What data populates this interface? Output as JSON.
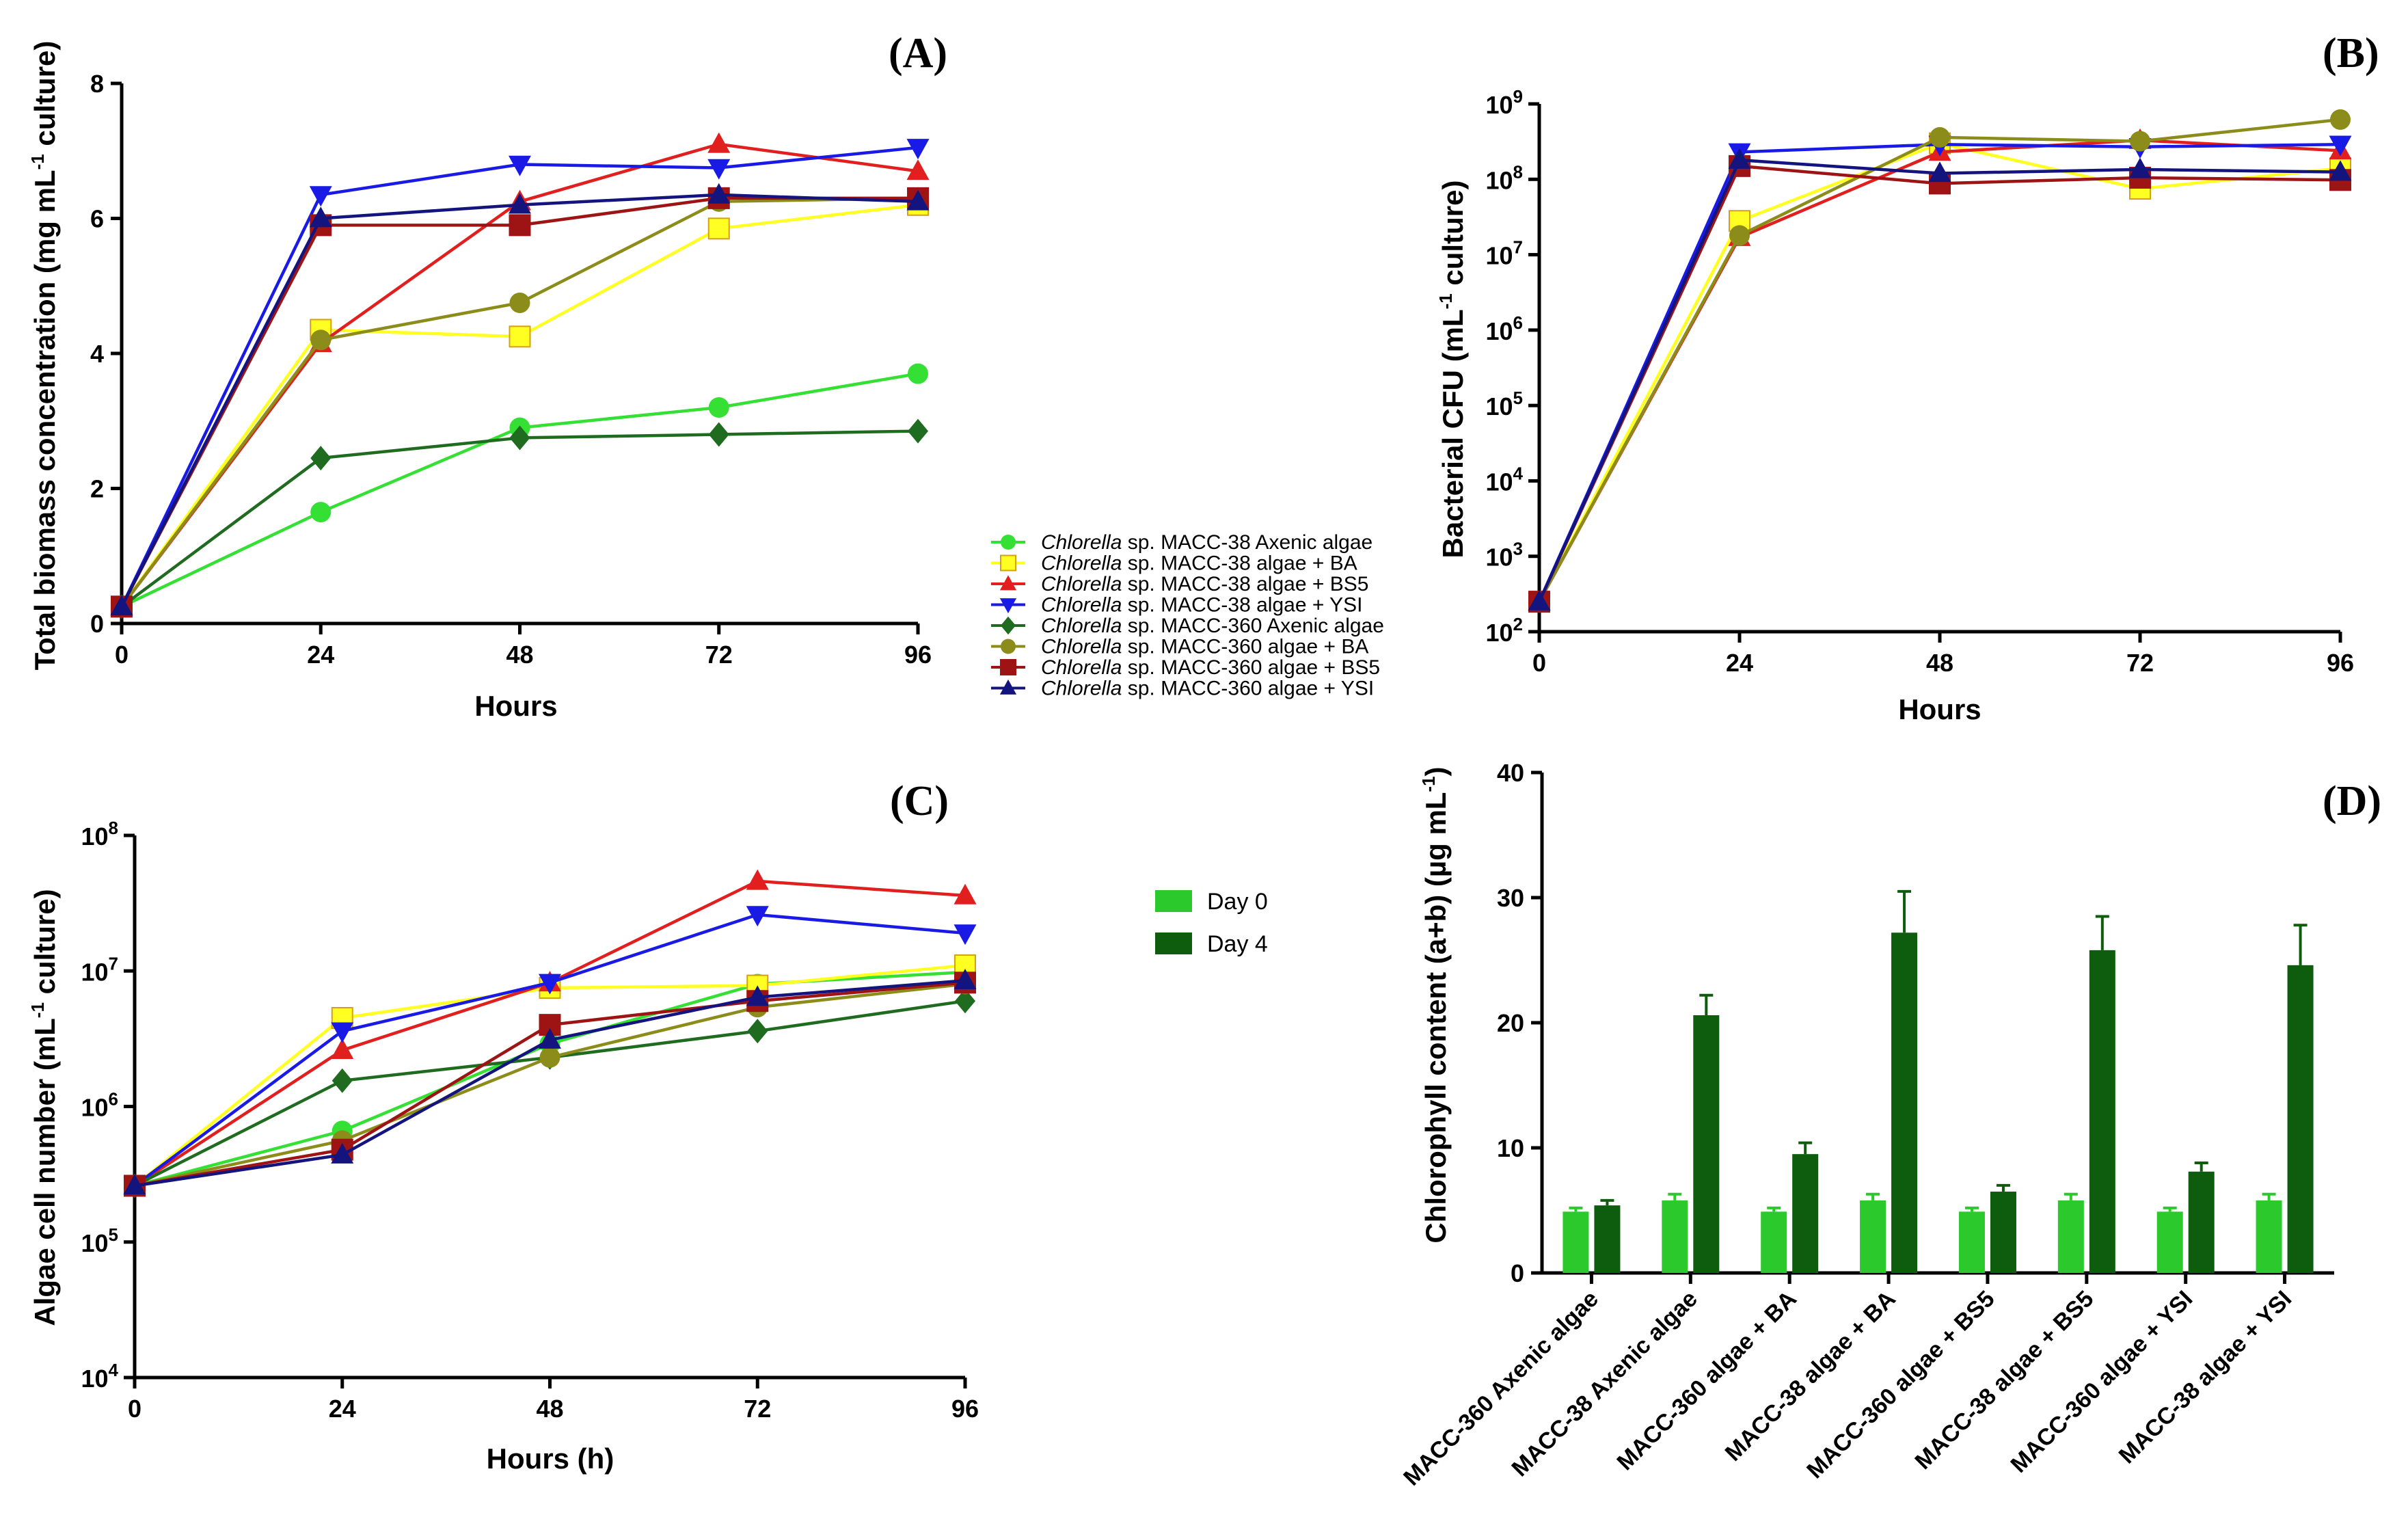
{
  "legend_groups": {
    "italic_name": "Chlorella",
    "lines": [
      {
        "text": " sp. MACC-38 Axenic algae",
        "color": "#33E033",
        "marker": "circle"
      },
      {
        "text": " sp. MACC-38 algae + BA",
        "color": "#FFFF22",
        "marker": "square"
      },
      {
        "text": " sp. MACC-38 algae + BS5",
        "color": "#E21F1F",
        "marker": "triangle-up"
      },
      {
        "text": " sp. MACC-38 algae + YSI",
        "color": "#1A1AE6",
        "marker": "triangle-down"
      },
      {
        "text": " sp. MACC-360 Axenic algae",
        "color": "#1F6B1F",
        "marker": "diamond"
      },
      {
        "text": " sp. MACC-360 algae + BA",
        "color": "#8C8C1A",
        "marker": "circle"
      },
      {
        "text": " sp. MACC-360 algae + BS5",
        "color": "#9E1414",
        "marker": "square"
      },
      {
        "text": " sp. MACC-360 algae + YSI",
        "color": "#14147E",
        "marker": "triangle-up"
      }
    ]
  },
  "bar_legend": [
    {
      "label": "Day 0",
      "color": "#2BC92B"
    },
    {
      "label": "Day 4",
      "color": "#0E5C0E"
    }
  ],
  "chart_data": [
    {
      "id": "A",
      "panel_label": "(A)",
      "type": "line",
      "xlabel": "Hours",
      "ylabel_parts": [
        "Total biomass concentration (mg mL",
        "-1",
        " culture)"
      ],
      "x": [
        0,
        24,
        48,
        72,
        96
      ],
      "xticks": [
        "0",
        "24",
        "48",
        "72",
        "96"
      ],
      "yticks": [
        "0",
        "2",
        "4",
        "6",
        "8"
      ],
      "xlim": [
        0,
        96
      ],
      "ylim": [
        0,
        8
      ],
      "yscale": "linear",
      "series": [
        {
          "name": "Chlorella sp. MACC-38 Axenic algae",
          "values": [
            0.25,
            1.65,
            2.9,
            3.2,
            3.7
          ]
        },
        {
          "name": "Chlorella sp. MACC-38 algae + BA",
          "values": [
            0.25,
            4.35,
            4.25,
            5.85,
            6.2
          ]
        },
        {
          "name": "Chlorella sp. MACC-38 algae + BS5",
          "values": [
            0.25,
            4.15,
            6.25,
            7.1,
            6.7
          ]
        },
        {
          "name": "Chlorella sp. MACC-38 algae + YSI",
          "values": [
            0.25,
            6.35,
            6.8,
            6.75,
            7.05
          ]
        },
        {
          "name": "Chlorella sp. MACC-360 Axenic algae",
          "values": [
            0.25,
            2.45,
            2.75,
            2.8,
            2.85
          ]
        },
        {
          "name": "Chlorella sp. MACC-360 algae + BA",
          "values": [
            0.25,
            4.2,
            4.75,
            6.25,
            6.3
          ]
        },
        {
          "name": "Chlorella sp. MACC-360 algae + BS5",
          "values": [
            0.25,
            5.9,
            5.9,
            6.3,
            6.3
          ]
        },
        {
          "name": "Chlorella sp. MACC-360 algae + YSI",
          "values": [
            0.25,
            6.0,
            6.2,
            6.35,
            6.25
          ]
        }
      ]
    },
    {
      "id": "B",
      "panel_label": "(B)",
      "type": "line",
      "xlabel": "Hours",
      "ylabel_parts": [
        "Bacterial CFU (mL",
        "-1",
        " culture)"
      ],
      "x": [
        0,
        24,
        48,
        72,
        96
      ],
      "xticks": [
        "0",
        "24",
        "48",
        "72",
        "96"
      ],
      "ytick_exponents": [
        "2",
        "3",
        "4",
        "5",
        "6",
        "7",
        "8",
        "9"
      ],
      "xlim": [
        0,
        96
      ],
      "ylim": [
        100,
        1000000000
      ],
      "yscale": "log",
      "series": [
        {
          "name": "Chlorella sp. MACC-38 algae + BA",
          "values": [
            250,
            28000000,
            300000000,
            75000000,
            140000000
          ]
        },
        {
          "name": "Chlorella sp. MACC-38 algae + BS5",
          "values": [
            250,
            17000000,
            230000000,
            330000000,
            240000000
          ]
        },
        {
          "name": "Chlorella sp. MACC-38 algae + YSI",
          "values": [
            250,
            230000000,
            290000000,
            270000000,
            290000000
          ]
        },
        {
          "name": "Chlorella sp. MACC-360 algae + BA",
          "values": [
            250,
            18000000,
            360000000,
            320000000,
            620000000
          ]
        },
        {
          "name": "Chlorella sp. MACC-360 algae + BS5",
          "values": [
            250,
            150000000,
            88000000,
            105000000,
            98000000
          ]
        },
        {
          "name": "Chlorella sp. MACC-360 algae + YSI",
          "values": [
            250,
            180000000,
            120000000,
            135000000,
            125000000
          ]
        }
      ]
    },
    {
      "id": "C",
      "panel_label": "(C)",
      "type": "line",
      "xlabel": "Hours (h)",
      "ylabel_parts": [
        "Algae cell number (mL",
        "-1",
        " culture)"
      ],
      "x": [
        0,
        24,
        48,
        72,
        96
      ],
      "xticks": [
        "0",
        "24",
        "48",
        "72",
        "96"
      ],
      "ytick_exponents": [
        "4",
        "5",
        "6",
        "7",
        "8"
      ],
      "xlim": [
        0,
        96
      ],
      "ylim": [
        10000,
        100000000
      ],
      "yscale": "log",
      "series": [
        {
          "name": "Chlorella sp. MACC-38 Axenic algae",
          "values": [
            260000,
            660000,
            2900000,
            8000000,
            9800000
          ]
        },
        {
          "name": "Chlorella sp. MACC-38 algae + BA",
          "values": [
            260000,
            4500000,
            7500000,
            7800000,
            11000000
          ]
        },
        {
          "name": "Chlorella sp. MACC-38 algae + BS5",
          "values": [
            260000,
            2600000,
            8200000,
            46000000,
            36000000
          ]
        },
        {
          "name": "Chlorella sp. MACC-38 algae + YSI",
          "values": [
            260000,
            3600000,
            8200000,
            26000000,
            19000000
          ]
        },
        {
          "name": "Chlorella sp. MACC-360 Axenic algae",
          "values": [
            260000,
            1550000,
            2300000,
            3600000,
            6000000
          ]
        },
        {
          "name": "Chlorella sp. MACC-360 algae + BA",
          "values": [
            260000,
            560000,
            2300000,
            5400000,
            8000000
          ]
        },
        {
          "name": "Chlorella sp. MACC-360 algae + BS5",
          "values": [
            260000,
            480000,
            4000000,
            6000000,
            8200000
          ]
        },
        {
          "name": "Chlorella sp. MACC-360 algae + YSI",
          "values": [
            260000,
            440000,
            3100000,
            6400000,
            8500000
          ]
        }
      ]
    },
    {
      "id": "D",
      "panel_label": "(D)",
      "type": "bar",
      "xlabel": "",
      "ylabel_parts": [
        "Chlorophyll content (a+b) (µg mL",
        "-1",
        ")"
      ],
      "categories": [
        "MACC-360 Axenic algae",
        "MACC-38 Axenic algae",
        "MACC-360 algae + BA",
        "MACC-38 algae + BA",
        "MACC-360 algae + BS5",
        "MACC-38 algae + BS5",
        "MACC-360 algae + YSI",
        "MACC-38 algae + YSI"
      ],
      "yticks": [
        "0",
        "10",
        "20",
        "30",
        "40"
      ],
      "ylim": [
        0,
        40
      ],
      "series": [
        {
          "name": "Day 0",
          "values": [
            4.9,
            5.8,
            4.9,
            5.8,
            4.9,
            5.8,
            4.9,
            5.8
          ],
          "errors": [
            0.3,
            0.5,
            0.3,
            0.5,
            0.3,
            0.5,
            0.3,
            0.5
          ]
        },
        {
          "name": "Day 4",
          "values": [
            5.4,
            20.6,
            9.5,
            27.2,
            6.5,
            25.8,
            8.1,
            24.6
          ],
          "errors": [
            0.4,
            1.6,
            0.9,
            3.3,
            0.5,
            2.7,
            0.7,
            3.2
          ]
        }
      ]
    }
  ]
}
